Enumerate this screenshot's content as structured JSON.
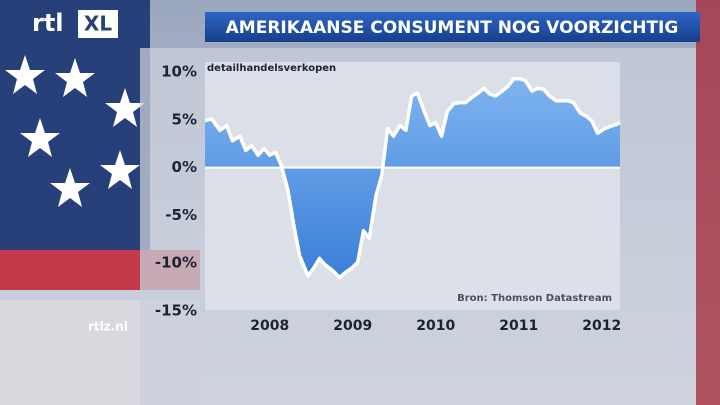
{
  "branding": {
    "logo": "rtl",
    "logo_suffix": "XL",
    "website": "rtlz.nl"
  },
  "chart_data": {
    "type": "area-line",
    "title": "AMERIKAANSE CONSUMENT NOG VOORZICHTIG",
    "y_label": "detailhandelsverkopen",
    "source": "Bron: Thomson Datastream",
    "x": [
      2007.72,
      2007.8,
      2007.9,
      2007.98,
      2008.05,
      2008.14,
      2008.21,
      2008.28,
      2008.36,
      2008.43,
      2008.5,
      2008.57,
      2008.64,
      2008.72,
      2008.79,
      2008.86,
      2008.96,
      2009.03,
      2009.1,
      2009.17,
      2009.25,
      2009.34,
      2009.42,
      2009.49,
      2009.56,
      2009.63,
      2009.7,
      2009.78,
      2009.85,
      2009.92,
      2009.99,
      2010.07,
      2010.14,
      2010.21,
      2010.28,
      2010.36,
      2010.43,
      2010.5,
      2010.57,
      2010.64,
      2010.72,
      2010.79,
      2010.86,
      2010.93,
      2011.01,
      2011.08,
      2011.15,
      2011.22,
      2011.3,
      2011.37,
      2011.44,
      2011.51,
      2011.58,
      2011.66,
      2011.73,
      2011.8,
      2011.87,
      2011.95,
      2012.02,
      2012.09,
      2012.16,
      2012.24,
      2012.31,
      2012.38,
      2012.45,
      2012.52,
      2012.6,
      2012.67,
      2012.72
    ],
    "series": [
      {
        "name": "detailhandelsverkopen",
        "color": "#ffffff",
        "fill": "#4f93e3",
        "values": [
          4.9,
          5.1,
          3.9,
          4.4,
          2.8,
          3.3,
          1.8,
          2.3,
          1.3,
          2.0,
          1.3,
          1.6,
          0.2,
          -2.4,
          -6.0,
          -9.2,
          -11.3,
          -10.5,
          -9.5,
          -10.2,
          -10.7,
          -11.5,
          -10.9,
          -10.5,
          -9.9,
          -6.6,
          -7.4,
          -2.9,
          -0.8,
          4.1,
          3.3,
          4.4,
          3.9,
          7.5,
          7.8,
          5.9,
          4.4,
          4.7,
          3.3,
          5.9,
          6.7,
          6.8,
          6.8,
          7.3,
          7.8,
          8.3,
          7.7,
          7.5,
          8.0,
          8.5,
          9.3,
          9.3,
          9.1,
          8.0,
          8.3,
          8.2,
          7.5,
          7.0,
          7.0,
          7.0,
          6.8,
          5.7,
          5.4,
          4.9,
          3.6,
          4.0,
          4.3,
          4.5,
          4.7
        ]
      }
    ],
    "xlim": [
      2007.72,
      2012.72
    ],
    "xticks": [
      {
        "value": 2008.5,
        "label": "2008"
      },
      {
        "value": 2009.5,
        "label": "2009"
      },
      {
        "value": 2010.5,
        "label": "2010"
      },
      {
        "value": 2011.5,
        "label": "2011"
      },
      {
        "value": 2012.5,
        "label": "2012"
      }
    ],
    "ylim": [
      -15,
      10
    ],
    "yticks": [
      {
        "value": 10,
        "label": "10%"
      },
      {
        "value": 5,
        "label": "5%"
      },
      {
        "value": 0,
        "label": "0%"
      },
      {
        "value": -5,
        "label": "-5%"
      },
      {
        "value": -10,
        "label": "-10%"
      },
      {
        "value": -15,
        "label": "-15%"
      }
    ],
    "zero_line": true
  }
}
